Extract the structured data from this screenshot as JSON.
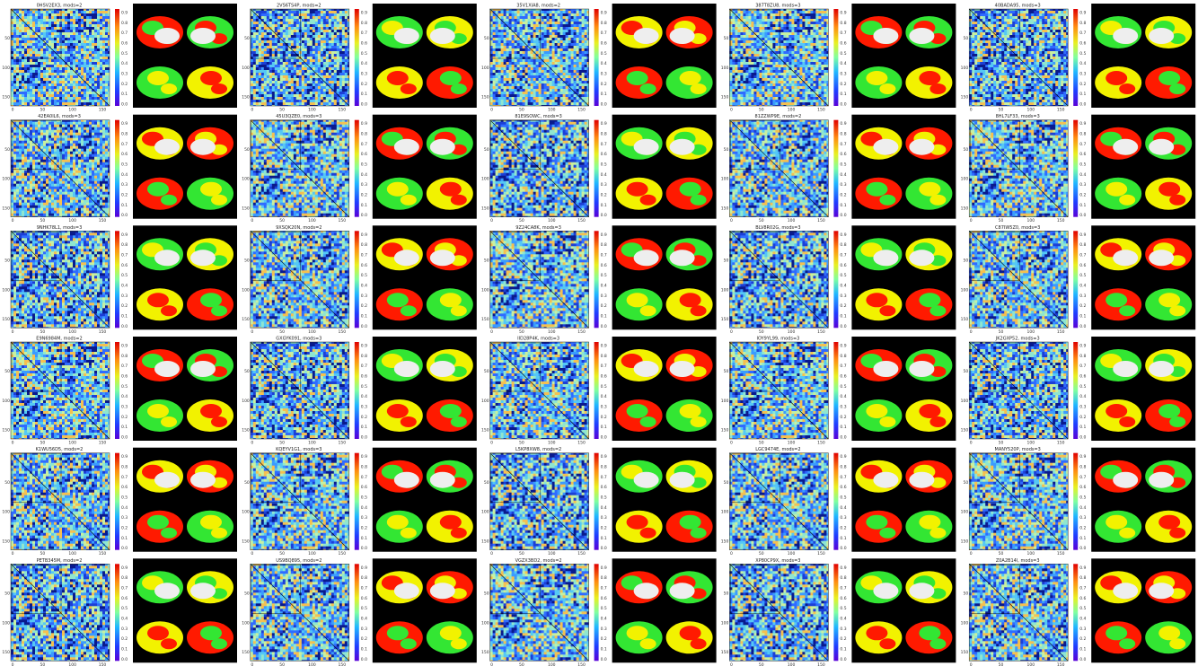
{
  "panels": [
    {
      "title": "0HSV2EX3, mods=2"
    },
    {
      "title": "2VS6TS4P, mods=2"
    },
    {
      "title": "35V1XIA8, mods=2"
    },
    {
      "title": "387T8ZU8, mods=3"
    },
    {
      "title": "40BADA95, mods=3"
    },
    {
      "title": "42EA0IL6, mods=3"
    },
    {
      "title": "45U3QZE0, mods=3"
    },
    {
      "title": "81E9SOWC, mods=3"
    },
    {
      "title": "81ZZWP9E, mods=2"
    },
    {
      "title": "8HL7LF33, mods=3"
    },
    {
      "title": "9NHK78L1, mods=3"
    },
    {
      "title": "9XSQK20N, mods=2"
    },
    {
      "title": "9Z24CA8K, mods=3"
    },
    {
      "title": "BLV8R02G, mods=3"
    },
    {
      "title": "C87IW5Z0, mods=3"
    },
    {
      "title": "E9N6984M, mods=2"
    },
    {
      "title": "GXGYK091, mods=3"
    },
    {
      "title": "IID28P4K, mods=3"
    },
    {
      "title": "IOY9YL99, mods=3"
    },
    {
      "title": "JK2GXP52, mods=3"
    },
    {
      "title": "K1WU56D5, mods=2"
    },
    {
      "title": "KQEYV1G1, mods=3"
    },
    {
      "title": "L5KP8XW8, mods=2"
    },
    {
      "title": "LGC9474E, mods=2"
    },
    {
      "title": "MANY520P, mods=3"
    },
    {
      "title": "PETB345M, mods=2"
    },
    {
      "title": "US9BQ895, mods=2"
    },
    {
      "title": "VGZX3BD2, mods=2"
    },
    {
      "title": "XP80CP9X, mods=3"
    },
    {
      "title": "Z0A2B14I, mods=3"
    }
  ],
  "axis": {
    "xticks": [
      "0",
      "50",
      "100",
      "150"
    ],
    "yticks": [
      "50",
      "100",
      "150"
    ],
    "colorbar_ticks": [
      "0.0",
      "0.1",
      "0.2",
      "0.3",
      "0.4",
      "0.5",
      "0.6",
      "0.7",
      "0.8",
      "0.9"
    ]
  }
}
